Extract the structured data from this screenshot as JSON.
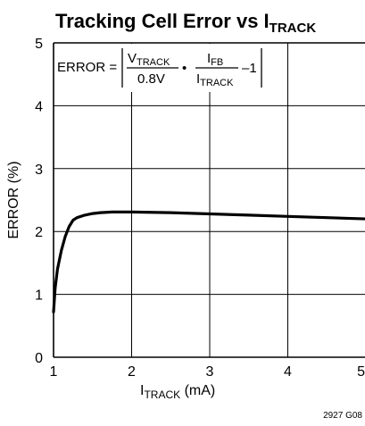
{
  "chart_data": {
    "type": "line",
    "title": {
      "main": "Tracking Cell Error vs I",
      "sub": "TRACK"
    },
    "xlabel": {
      "main": "I",
      "sub": "TRACK",
      "unit": " (mA)"
    },
    "ylabel": "ERROR (%)",
    "xlim": [
      1,
      5
    ],
    "ylim": [
      0,
      5
    ],
    "x_ticks": [
      "1",
      "2",
      "3",
      "4",
      "5"
    ],
    "y_ticks": [
      "0",
      "1",
      "2",
      "3",
      "4",
      "5"
    ],
    "grid": true,
    "formula": {
      "lhs": "ERROR =",
      "v_num": "V",
      "v_num_sub": "TRACK",
      "v_den": "0.8V",
      "dot": "•",
      "i_num": "I",
      "i_num_sub": "FB",
      "i_den": "I",
      "i_den_sub": "TRACK",
      "tail": "–1"
    },
    "series": [
      {
        "x": [
          1.0,
          1.02,
          1.05,
          1.1,
          1.15,
          1.2,
          1.25,
          1.3,
          1.4,
          1.5,
          1.6,
          1.75,
          2.0,
          2.5,
          3.0,
          3.5,
          4.0,
          4.5,
          5.0
        ],
        "values": [
          0.72,
          1.1,
          1.4,
          1.7,
          1.92,
          2.08,
          2.18,
          2.22,
          2.26,
          2.285,
          2.3,
          2.31,
          2.31,
          2.3,
          2.28,
          2.26,
          2.24,
          2.22,
          2.2
        ]
      }
    ],
    "figure_id": "2927 G08"
  }
}
